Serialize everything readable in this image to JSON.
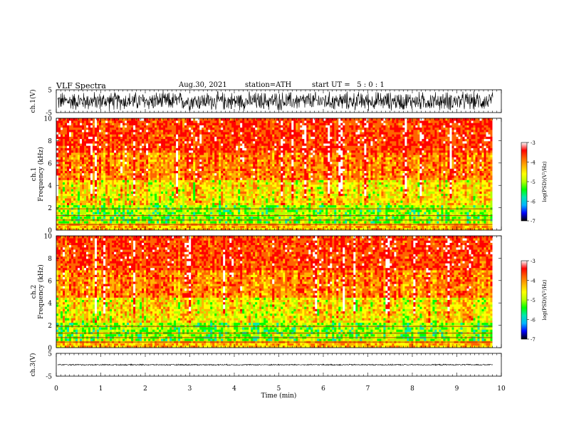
{
  "header": {
    "title": "VLF Spectra",
    "date": "Aug.30, 2021",
    "station": "station=ATH",
    "start": "start UT =   5 : 0 : 1"
  },
  "chart_data": [
    {
      "type": "line",
      "name": "ch1-waveform",
      "ylabel": "ch.1(V)",
      "ylim": [
        -5,
        5
      ],
      "yticks": [
        "5",
        "-5"
      ],
      "xlim": [
        0,
        10
      ]
    },
    {
      "type": "heatmap",
      "name": "ch1-spectrogram",
      "ylabel": "ch.1\nFrequency (kHz)",
      "ylabel_lines": [
        "ch.1",
        "Frequency (kHz)"
      ],
      "ylim": [
        0,
        10
      ],
      "yticks": [
        "0",
        "2",
        "4",
        "6",
        "8",
        "10"
      ],
      "xlim": [
        0,
        10
      ],
      "data_end_min": 9.8,
      "colorbar": {
        "label": "log(PSD)(V²/Hz)",
        "range": [
          -7,
          -3
        ],
        "ticks": [
          "-3",
          "-4",
          "-5",
          "-6",
          "-7"
        ]
      }
    },
    {
      "type": "heatmap",
      "name": "ch2-spectrogram",
      "ylabel_lines": [
        "ch.2",
        "Frequency (kHz)"
      ],
      "ylim": [
        0,
        10
      ],
      "yticks": [
        "0",
        "2",
        "4",
        "6",
        "8",
        "10"
      ],
      "xlim": [
        0,
        10
      ],
      "data_end_min": 9.8,
      "colorbar": {
        "label": "log(PSD)(V²/Hz)",
        "range": [
          -7,
          -3
        ],
        "ticks": [
          "-3",
          "-4",
          "-5",
          "-6",
          "-7"
        ]
      }
    },
    {
      "type": "line",
      "name": "ch3-waveform",
      "ylabel": "ch.3(V)",
      "ylim": [
        -5,
        5
      ],
      "yticks": [
        "5",
        "-5"
      ],
      "xlim": [
        0,
        10
      ]
    }
  ],
  "xaxis": {
    "label": "Time (min)",
    "ticks": [
      "0",
      "1",
      "2",
      "3",
      "4",
      "5",
      "6",
      "7",
      "8",
      "9",
      "10"
    ]
  },
  "colors": [
    "#000000",
    "#0000ff",
    "#00b4ff",
    "#00e6b4",
    "#00ff00",
    "#b4ff00",
    "#ffff00",
    "#ffb400",
    "#ff6400",
    "#ff0000",
    "#ffffff"
  ]
}
